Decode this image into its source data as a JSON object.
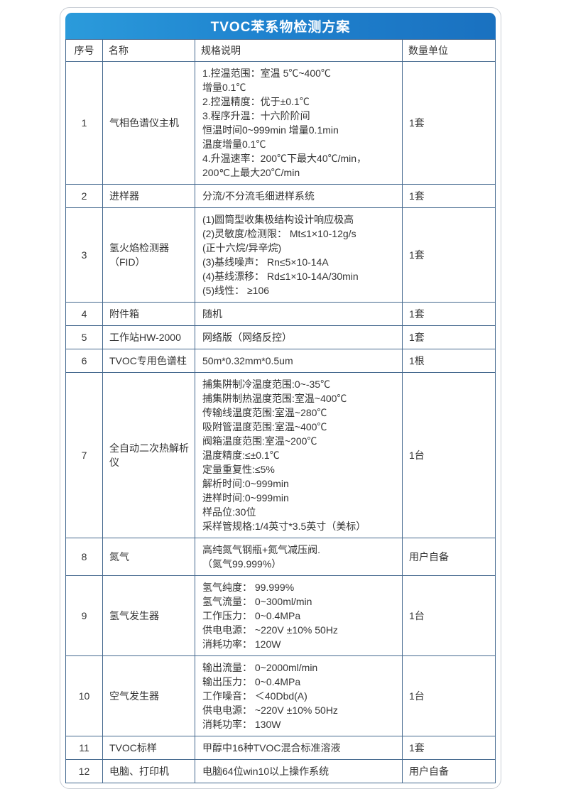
{
  "title": "TVOC苯系物检测方案",
  "colors": {
    "title_gradient_left": "#2b9bdb",
    "title_gradient_right": "#1a71c0",
    "table_border": "#44688e",
    "card_border": "#c9ced5",
    "text": "#333333",
    "title_text": "#ffffff"
  },
  "table": {
    "headers": [
      "序号",
      "名称",
      "规格说明",
      "数量单位"
    ],
    "rows": [
      {
        "no": "1",
        "name": "气相色谱仪主机",
        "spec": "1.控温范围：室温 5℃~400℃\n增量0.1℃\n2.控温精度：优于±0.1℃\n3.程序升温：十六阶阶间\n恒温时间0~999min 增量0.1min\n温度增量0.1℃\n4.升温速率：200℃下最大40℃/min，\n200℃上最大20℃/min",
        "qty": "1套"
      },
      {
        "no": "2",
        "name": "进样器",
        "spec": "分流/不分流毛细进样系统",
        "qty": "1套"
      },
      {
        "no": "3",
        "name": "氢火焰检测器（FID）",
        "spec": "(1)圆筒型收集极结构设计响应极高\n(2)灵敏度/检测限： Mt≤1×10-12g/s\n(正十六烷/异辛烷)\n(3)基线噪声： Rn≤5×10-14A\n(4)基线漂移： Rd≤1×10-14A/30min\n(5)线性： ≥106",
        "qty": "1套"
      },
      {
        "no": "4",
        "name": "附件箱",
        "spec": "随机",
        "qty": "1套"
      },
      {
        "no": "5",
        "name": "工作站HW-2000",
        "spec": "网络版（网络反控）",
        "qty": "1套"
      },
      {
        "no": "6",
        "name": "TVOC专用色谱柱",
        "spec": "50m*0.32mm*0.5um",
        "qty": "1根"
      },
      {
        "no": "7",
        "name": "全自动二次热解析仪",
        "spec": "捕集阱制冷温度范围:0~-35℃\n捕集阱制热温度范围:室温~400℃\n传输线温度范围:室温~280℃\n吸附管温度范围:室温~400℃\n阀箱温度范围:室温~200℃\n温度精度:≤±0.1℃\n定量重复性:≤5%\n解析时间:0~999min\n进样时间:0~999min\n样品位:30位\n采样管规格:1/4英寸*3.5英寸（美标）",
        "qty": "1台"
      },
      {
        "no": "8",
        "name": "氮气",
        "spec": "高纯氮气钢瓶+氮气减压阀.\n（氮气99.999%）",
        "qty": "用户自备"
      },
      {
        "no": "9",
        "name": "氢气发生器",
        "spec": "氢气纯度： 99.999%\n氢气流量： 0~300ml/min\n工作压力： 0~0.4MPa\n供电电源： ~220V ±10% 50Hz\n消耗功率： 120W",
        "qty": "1台"
      },
      {
        "no": "10",
        "name": "空气发生器",
        "spec": "输出流量： 0~2000ml/min\n输出压力： 0~0.4MPa\n工作噪音： ＜40Dbd(A)\n供电电源： ~220V ±10% 50Hz\n消耗功率： 130W",
        "qty": "1台"
      },
      {
        "no": "11",
        "name": "TVOC标样",
        "spec": "甲醇中16种TVOC混合标准溶液",
        "qty": "1套"
      },
      {
        "no": "12",
        "name": "电脑、打印机",
        "spec": "电脑64位win10以上操作系统",
        "qty": "用户自备"
      }
    ]
  }
}
